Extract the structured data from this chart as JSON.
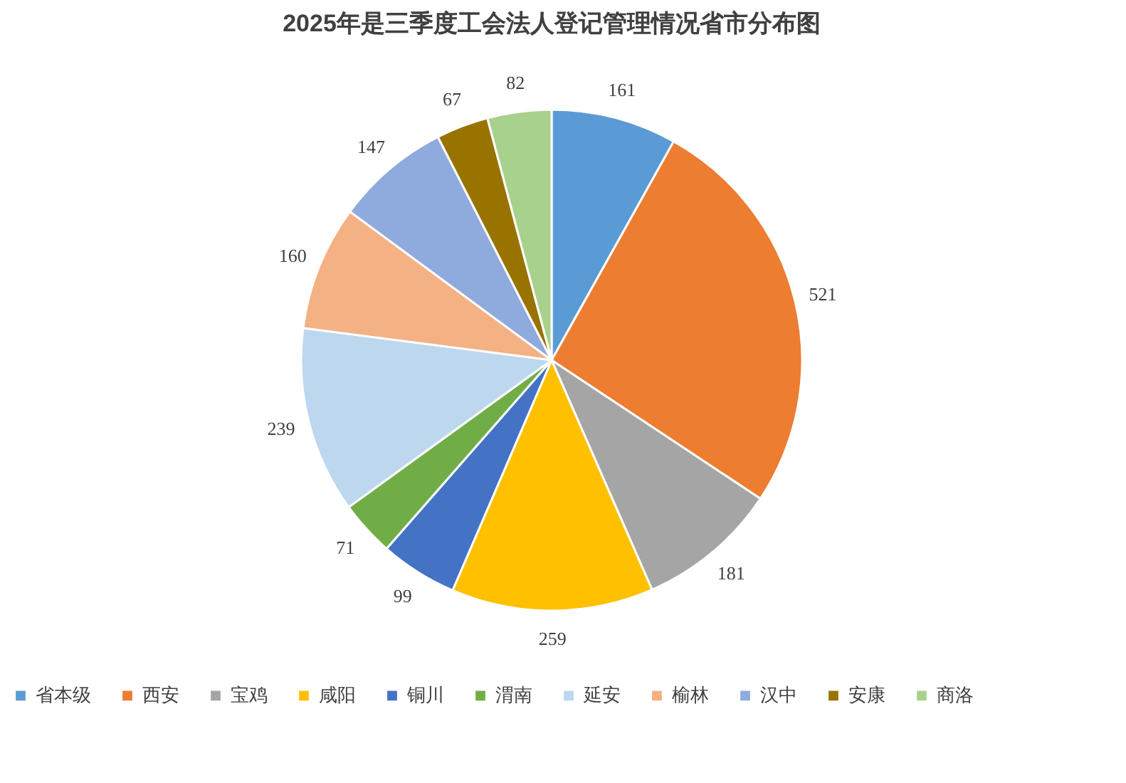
{
  "chart_data": {
    "type": "pie",
    "title": "2025年是三季度工会法人登记管理情况省市分布图",
    "categories": [
      "省本级",
      "西安",
      "宝鸡",
      "咸阳",
      "铜川",
      "渭南",
      "延安",
      "榆林",
      "汉中",
      "安康",
      "商洛"
    ],
    "values": [
      161,
      521,
      181,
      259,
      99,
      71,
      239,
      160,
      147,
      67,
      82
    ],
    "colors": [
      "#5b9bd5",
      "#ed7d31",
      "#a5a5a5",
      "#ffc000",
      "#4472c4",
      "#70ad47",
      "#bdd7ee",
      "#f4b183",
      "#8faadc",
      "#997300",
      "#a9d18e"
    ],
    "data_labels": true,
    "legend": "bottom"
  }
}
